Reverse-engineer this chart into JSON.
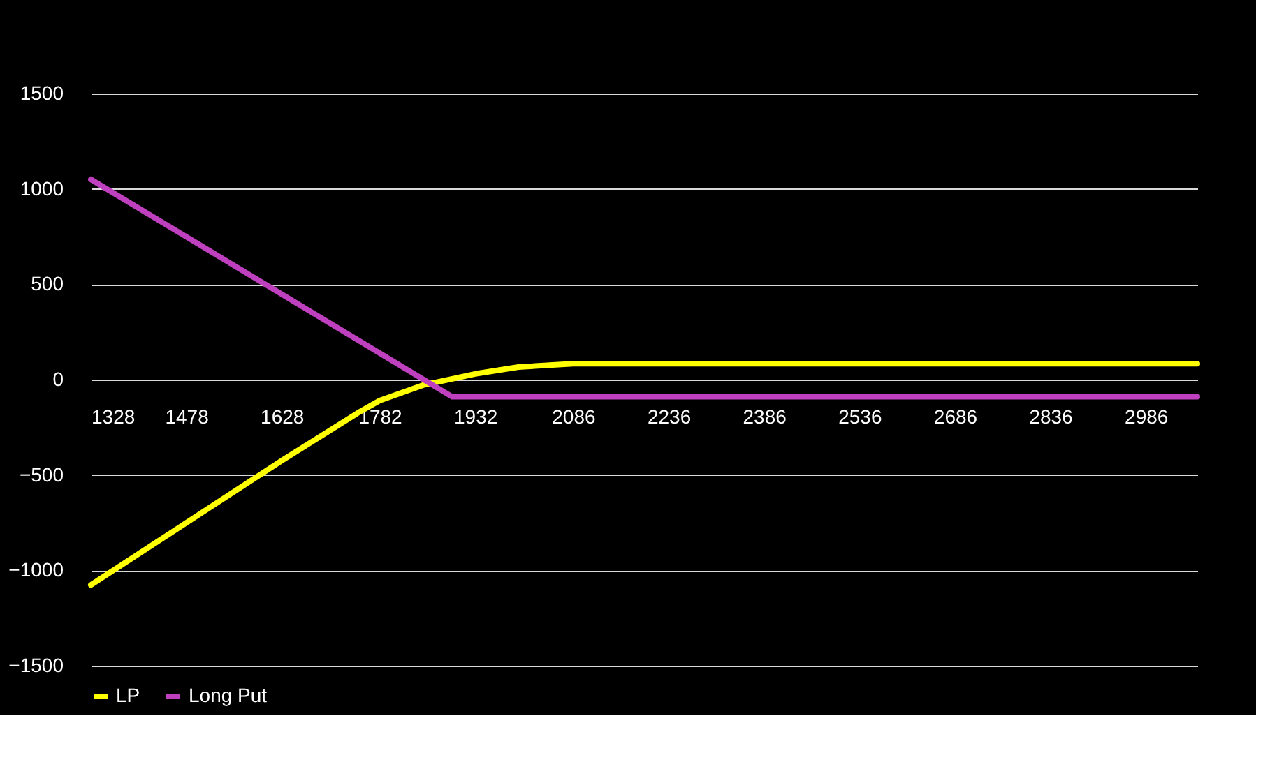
{
  "chart_data": {
    "type": "line",
    "xlim": [
      1328,
      3067
    ],
    "xticks": [
      1328,
      1478,
      1628,
      1782,
      1932,
      2086,
      2236,
      2386,
      2536,
      2686,
      2836,
      2986
    ],
    "ylim": [
      -1500,
      1500
    ],
    "yticks": [
      -1500,
      -1000,
      -500,
      0,
      500,
      1000,
      1500
    ],
    "grid": "y",
    "legend": "bottom",
    "marker": "none",
    "line_style": "solid",
    "series": [
      {
        "name": "LP",
        "color": "#ffff00",
        "x": [
          1328,
          1628,
          1750,
          1782,
          1850,
          1932,
          2000,
          2086,
          3067
        ],
        "values": [
          -1077,
          -425,
          -170,
          -110,
          -29,
          30,
          66,
          83,
          83
        ]
      },
      {
        "name": "Long Put",
        "color": "#bf40bf",
        "x": [
          1328,
          1896,
          3067
        ],
        "values": [
          1050,
          -90,
          -90
        ]
      }
    ]
  }
}
